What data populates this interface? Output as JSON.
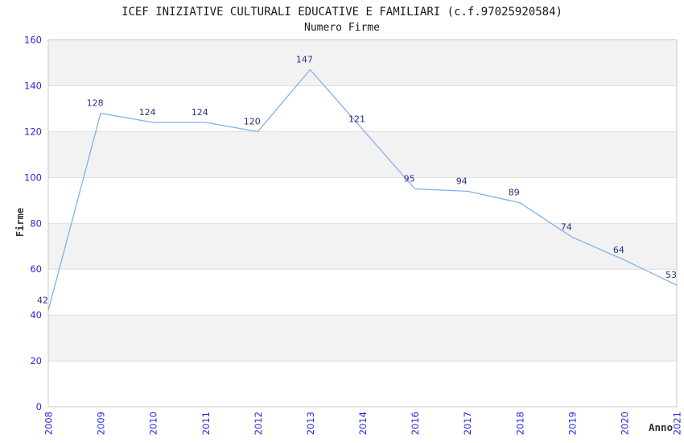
{
  "header": {
    "title": "ICEF INIZIATIVE CULTURALI EDUCATIVE E FAMILIARI (c.f.97025920584)",
    "subtitle": "Numero Firme"
  },
  "chart_data": {
    "type": "line",
    "title": "ICEF INIZIATIVE CULTURALI EDUCATIVE E FAMILIARI (c.f.97025920584)",
    "subtitle": "Numero Firme",
    "xlabel": "Anno",
    "ylabel": "Firme",
    "categories": [
      "2008",
      "2009",
      "2010",
      "2011",
      "2012",
      "2013",
      "2014",
      "2016",
      "2017",
      "2018",
      "2019",
      "2020",
      "2021"
    ],
    "values": [
      42,
      128,
      124,
      124,
      120,
      147,
      121,
      95,
      94,
      89,
      74,
      64,
      53
    ],
    "ylim": [
      0,
      160
    ],
    "ytick_interval": 20,
    "yticks": [
      0,
      20,
      40,
      60,
      80,
      100,
      120,
      140,
      160
    ],
    "grid": "horizontal",
    "alternating_bands": true,
    "legend_position": "none",
    "data_labels_shown": true,
    "colors": {
      "line": "#7fb3e8",
      "data_label": "#2d2d80",
      "tick_label": "#2727dd",
      "band": "#f2f2f2",
      "gridline": "#dedede",
      "plot_border": "#c8c8c8",
      "title_text": "#1a1a1a",
      "axis_title": "#333333",
      "background": "#ffffff"
    }
  }
}
